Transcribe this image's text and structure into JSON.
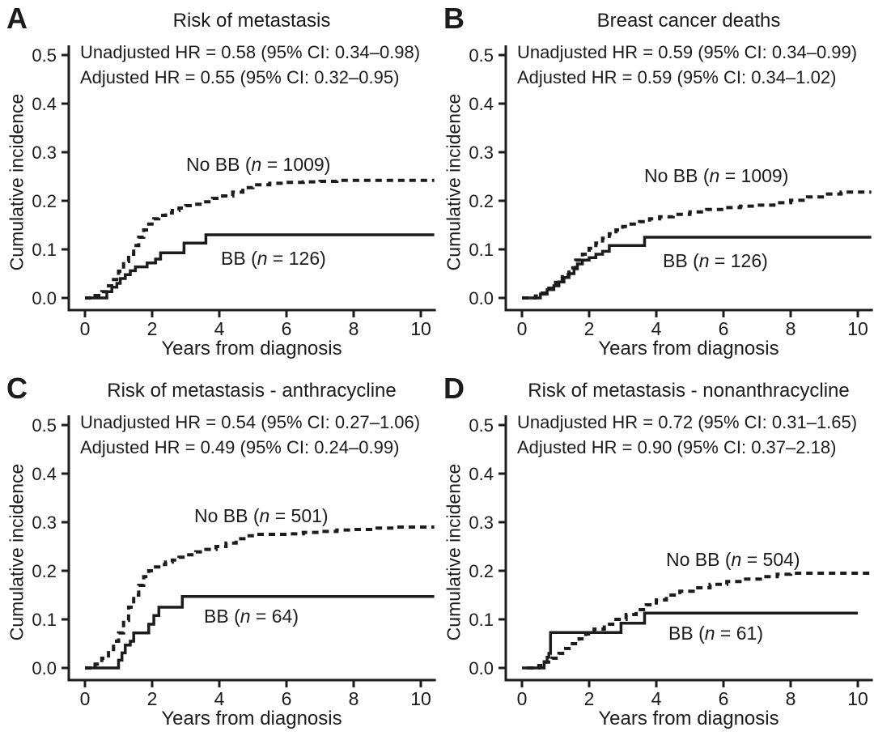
{
  "colors": {
    "foreground": "#1c1c1c",
    "background": "#ffffff"
  },
  "chart_data": [
    {
      "type": "line",
      "subtype": "cumulative-incidence-step",
      "panel_label": "A",
      "title": "Risk of metastasis",
      "annotations": [
        "Unadjusted HR = 0.58 (95% CI: 0.34–0.98)",
        "Adjusted HR = 0.55 (95% CI: 0.32–0.95)"
      ],
      "xlabel": "Years from diagnosis",
      "ylabel": "Cumulative incidence",
      "xlim": [
        0,
        10.4
      ],
      "ylim": [
        0,
        0.5
      ],
      "xticks": [
        0,
        2,
        4,
        6,
        8,
        10
      ],
      "ytick_labels": [
        "0.0",
        "0.1",
        "0.2",
        "0.3",
        "0.4",
        "0.5"
      ],
      "grid": false,
      "legend_position": "inline-labels",
      "series": [
        {
          "name": "No BB",
          "n": 1009,
          "line_style": "dashed",
          "label": {
            "prefix": "No BB (",
            "n_symbol": "n",
            "suffix": " = 1009)"
          },
          "points": [
            [
              0,
              0
            ],
            [
              0.3,
              0.005
            ],
            [
              0.5,
              0.013
            ],
            [
              0.7,
              0.025
            ],
            [
              0.85,
              0.038
            ],
            [
              1.0,
              0.055
            ],
            [
              1.15,
              0.075
            ],
            [
              1.3,
              0.09
            ],
            [
              1.45,
              0.108
            ],
            [
              1.6,
              0.125
            ],
            [
              1.75,
              0.14
            ],
            [
              1.9,
              0.152
            ],
            [
              2.05,
              0.163
            ],
            [
              2.2,
              0.17
            ],
            [
              2.4,
              0.175
            ],
            [
              2.6,
              0.18
            ],
            [
              2.8,
              0.185
            ],
            [
              3.0,
              0.19
            ],
            [
              3.2,
              0.193
            ],
            [
              3.5,
              0.198
            ],
            [
              3.8,
              0.205
            ],
            [
              4.1,
              0.21
            ],
            [
              4.4,
              0.218
            ],
            [
              4.7,
              0.227
            ],
            [
              5.0,
              0.233
            ],
            [
              5.5,
              0.236
            ],
            [
              6.0,
              0.238
            ],
            [
              6.5,
              0.239
            ],
            [
              7.0,
              0.24
            ],
            [
              7.5,
              0.242
            ],
            [
              10.4,
              0.242
            ]
          ]
        },
        {
          "name": "BB",
          "n": 126,
          "line_style": "solid",
          "label": {
            "prefix": "BB (",
            "n_symbol": "n",
            "suffix": " = 126)"
          },
          "points": [
            [
              0,
              0
            ],
            [
              0.65,
              0.013
            ],
            [
              0.8,
              0.022
            ],
            [
              0.95,
              0.03
            ],
            [
              1.05,
              0.04
            ],
            [
              1.2,
              0.048
            ],
            [
              1.35,
              0.056
            ],
            [
              1.5,
              0.064
            ],
            [
              1.85,
              0.072
            ],
            [
              2.1,
              0.08
            ],
            [
              2.25,
              0.093
            ],
            [
              2.95,
              0.113
            ],
            [
              3.6,
              0.13
            ],
            [
              10.4,
              0.13
            ]
          ]
        }
      ]
    },
    {
      "type": "line",
      "subtype": "cumulative-incidence-step",
      "panel_label": "B",
      "title": "Breast cancer deaths",
      "annotations": [
        "Unadjusted HR = 0.59 (95% CI: 0.34–0.99)",
        "Adjusted HR = 0.59 (95% CI: 0.34–1.02)"
      ],
      "xlabel": "Years from diagnosis",
      "ylabel": "Cumulative incidence",
      "xlim": [
        0,
        10.4
      ],
      "ylim": [
        0,
        0.5
      ],
      "xticks": [
        0,
        2,
        4,
        6,
        8,
        10
      ],
      "ytick_labels": [
        "0.0",
        "0.1",
        "0.2",
        "0.3",
        "0.4",
        "0.5"
      ],
      "grid": false,
      "legend_position": "inline-labels",
      "series": [
        {
          "name": "No BB",
          "n": 1009,
          "line_style": "dashed",
          "label": {
            "prefix": "No BB (",
            "n_symbol": "n",
            "suffix": " = 1009)"
          },
          "points": [
            [
              0,
              0
            ],
            [
              0.4,
              0.004
            ],
            [
              0.6,
              0.01
            ],
            [
              0.8,
              0.02
            ],
            [
              1.0,
              0.032
            ],
            [
              1.2,
              0.048
            ],
            [
              1.4,
              0.062
            ],
            [
              1.6,
              0.078
            ],
            [
              1.8,
              0.09
            ],
            [
              2.0,
              0.102
            ],
            [
              2.2,
              0.113
            ],
            [
              2.4,
              0.123
            ],
            [
              2.6,
              0.132
            ],
            [
              2.8,
              0.14
            ],
            [
              3.0,
              0.147
            ],
            [
              3.2,
              0.152
            ],
            [
              3.5,
              0.157
            ],
            [
              3.8,
              0.163
            ],
            [
              4.1,
              0.167
            ],
            [
              4.5,
              0.172
            ],
            [
              5.0,
              0.177
            ],
            [
              5.5,
              0.182
            ],
            [
              6.0,
              0.186
            ],
            [
              6.5,
              0.189
            ],
            [
              7.0,
              0.191
            ],
            [
              7.5,
              0.196
            ],
            [
              8.0,
              0.201
            ],
            [
              8.5,
              0.208
            ],
            [
              9.0,
              0.214
            ],
            [
              9.5,
              0.218
            ],
            [
              10.4,
              0.218
            ]
          ]
        },
        {
          "name": "BB",
          "n": 126,
          "line_style": "solid",
          "label": {
            "prefix": "BB (",
            "n_symbol": "n",
            "suffix": " = 126)"
          },
          "points": [
            [
              0,
              0
            ],
            [
              0.55,
              0.008
            ],
            [
              0.75,
              0.017
            ],
            [
              0.95,
              0.025
            ],
            [
              1.1,
              0.033
            ],
            [
              1.25,
              0.042
            ],
            [
              1.4,
              0.05
            ],
            [
              1.55,
              0.06
            ],
            [
              1.65,
              0.07
            ],
            [
              1.8,
              0.078
            ],
            [
              2.0,
              0.083
            ],
            [
              2.2,
              0.09
            ],
            [
              2.4,
              0.096
            ],
            [
              2.6,
              0.108
            ],
            [
              3.65,
              0.125
            ],
            [
              10.4,
              0.125
            ]
          ]
        }
      ]
    },
    {
      "type": "line",
      "subtype": "cumulative-incidence-step",
      "panel_label": "C",
      "title": "Risk of metastasis - anthracycline",
      "annotations": [
        "Unadjusted HR = 0.54 (95% CI: 0.27–1.06)",
        "Adjusted HR = 0.49 (95% CI: 0.24–0.99)"
      ],
      "xlabel": "Years from diagnosis",
      "ylabel": "Cumulative incidence",
      "xlim": [
        0,
        10.4
      ],
      "ylim": [
        0,
        0.5
      ],
      "xticks": [
        0,
        2,
        4,
        6,
        8,
        10
      ],
      "ytick_labels": [
        "0.0",
        "0.1",
        "0.2",
        "0.3",
        "0.4",
        "0.5"
      ],
      "grid": false,
      "legend_position": "inline-labels",
      "series": [
        {
          "name": "No BB",
          "n": 501,
          "line_style": "dashed",
          "label": {
            "prefix": "No BB (",
            "n_symbol": "n",
            "suffix": " = 501)"
          },
          "points": [
            [
              0,
              0
            ],
            [
              0.3,
              0.008
            ],
            [
              0.5,
              0.02
            ],
            [
              0.7,
              0.038
            ],
            [
              0.85,
              0.055
            ],
            [
              1.0,
              0.072
            ],
            [
              1.15,
              0.098
            ],
            [
              1.3,
              0.125
            ],
            [
              1.45,
              0.15
            ],
            [
              1.6,
              0.17
            ],
            [
              1.75,
              0.188
            ],
            [
              1.9,
              0.2
            ],
            [
              2.05,
              0.208
            ],
            [
              2.2,
              0.213
            ],
            [
              2.4,
              0.218
            ],
            [
              2.6,
              0.222
            ],
            [
              2.8,
              0.228
            ],
            [
              3.0,
              0.233
            ],
            [
              3.3,
              0.239
            ],
            [
              3.6,
              0.244
            ],
            [
              3.9,
              0.25
            ],
            [
              4.2,
              0.257
            ],
            [
              4.5,
              0.266
            ],
            [
              4.8,
              0.272
            ],
            [
              5.1,
              0.275
            ],
            [
              6.0,
              0.276
            ],
            [
              6.5,
              0.279
            ],
            [
              7.0,
              0.281
            ],
            [
              7.5,
              0.284
            ],
            [
              8.0,
              0.285
            ],
            [
              8.7,
              0.288
            ],
            [
              9.2,
              0.29
            ],
            [
              10.4,
              0.29
            ]
          ]
        },
        {
          "name": "BB",
          "n": 64,
          "line_style": "solid",
          "label": {
            "prefix": "BB (",
            "n_symbol": "n",
            "suffix": " = 64)"
          },
          "points": [
            [
              0,
              0
            ],
            [
              1.0,
              0.016
            ],
            [
              1.1,
              0.031
            ],
            [
              1.2,
              0.047
            ],
            [
              1.35,
              0.055
            ],
            [
              1.45,
              0.072
            ],
            [
              1.9,
              0.09
            ],
            [
              2.05,
              0.108
            ],
            [
              2.2,
              0.125
            ],
            [
              2.9,
              0.147
            ],
            [
              10.4,
              0.147
            ]
          ]
        }
      ]
    },
    {
      "type": "line",
      "subtype": "cumulative-incidence-step",
      "panel_label": "D",
      "title": "Risk of metastasis - nonanthracycline",
      "annotations": [
        "Unadjusted HR = 0.72 (95% CI: 0.31–1.65)",
        "Adjusted HR = 0.90 (95% CI: 0.37–2.18)"
      ],
      "xlabel": "Years from diagnosis",
      "ylabel": "Cumulative incidence",
      "xlim": [
        0,
        10.4
      ],
      "ylim": [
        0,
        0.5
      ],
      "xticks": [
        0,
        2,
        4,
        6,
        8,
        10
      ],
      "ytick_labels": [
        "0.0",
        "0.1",
        "0.2",
        "0.3",
        "0.4",
        "0.5"
      ],
      "grid": false,
      "legend_position": "inline-labels",
      "series": [
        {
          "name": "No BB",
          "n": 504,
          "line_style": "dashed",
          "label": {
            "prefix": "No BB (",
            "n_symbol": "n",
            "suffix": " = 504)"
          },
          "points": [
            [
              0.15,
              0
            ],
            [
              0.5,
              0.005
            ],
            [
              0.7,
              0.012
            ],
            [
              0.9,
              0.02
            ],
            [
              1.1,
              0.03
            ],
            [
              1.3,
              0.04
            ],
            [
              1.5,
              0.05
            ],
            [
              1.7,
              0.06
            ],
            [
              1.9,
              0.07
            ],
            [
              2.15,
              0.08
            ],
            [
              2.45,
              0.09
            ],
            [
              2.8,
              0.1
            ],
            [
              3.1,
              0.11
            ],
            [
              3.4,
              0.12
            ],
            [
              3.7,
              0.13
            ],
            [
              4.0,
              0.14
            ],
            [
              4.3,
              0.15
            ],
            [
              4.7,
              0.158
            ],
            [
              5.1,
              0.165
            ],
            [
              5.6,
              0.172
            ],
            [
              6.1,
              0.178
            ],
            [
              6.6,
              0.183
            ],
            [
              7.1,
              0.188
            ],
            [
              7.6,
              0.193
            ],
            [
              8.0,
              0.195
            ],
            [
              10.4,
              0.195
            ]
          ]
        },
        {
          "name": "BB",
          "n": 61,
          "line_style": "solid",
          "label": {
            "prefix": "BB (",
            "n_symbol": "n",
            "suffix": " = 61)"
          },
          "points": [
            [
              0,
              0
            ],
            [
              0.66,
              0.013
            ],
            [
              0.75,
              0.022
            ],
            [
              0.8,
              0.03
            ],
            [
              0.85,
              0.073
            ],
            [
              2.95,
              0.092
            ],
            [
              3.65,
              0.113
            ],
            [
              10.0,
              0.113
            ]
          ]
        }
      ]
    }
  ]
}
